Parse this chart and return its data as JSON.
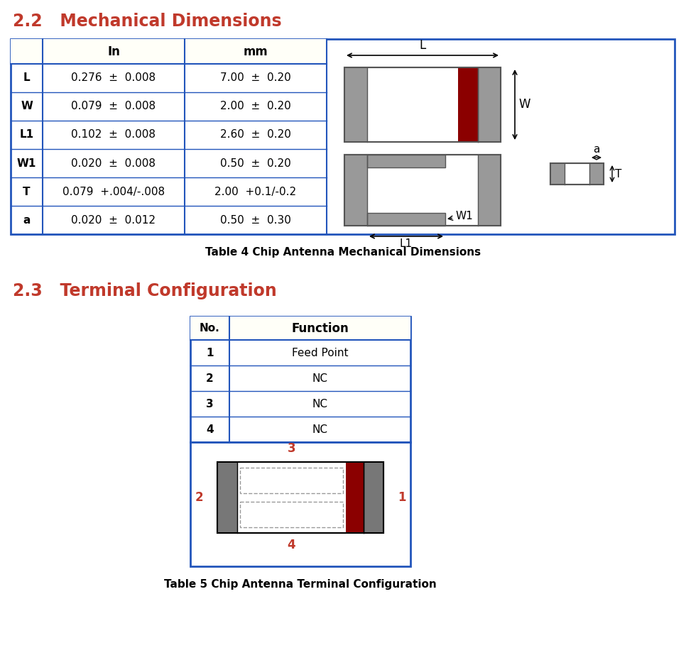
{
  "title_22": "2.2   Mechanical Dimensions",
  "title_23": "2.3   Terminal Configuration",
  "table4_caption": "Table 4 Chip Antenna Mechanical Dimensions",
  "table5_caption": "Table 5 Chip Antenna Terminal Configuration",
  "header_color": "#c0392b",
  "table_border_color": "#2255bb",
  "table_bg_header": "#fffff8",
  "mech_rows": [
    [
      "L",
      "0.276  ±  0.008",
      "7.00  ±  0.20"
    ],
    [
      "W",
      "0.079  ±  0.008",
      "2.00  ±  0.20"
    ],
    [
      "L1",
      "0.102  ±  0.008",
      "2.60  ±  0.20"
    ],
    [
      "W1",
      "0.020  ±  0.008",
      "0.50  ±  0.20"
    ],
    [
      "T",
      "0.079  +.004/-.008",
      "2.00  +0.1/-0.2"
    ],
    [
      "a",
      "0.020  ±  0.012",
      "0.50  ±  0.30"
    ]
  ],
  "term_rows": [
    [
      "1",
      "Feed Point"
    ],
    [
      "2",
      "NC"
    ],
    [
      "3",
      "NC"
    ],
    [
      "4",
      "NC"
    ]
  ],
  "gray_color": "#999999",
  "dark_red": "#8b0000",
  "white": "#ffffff",
  "black": "#000000"
}
